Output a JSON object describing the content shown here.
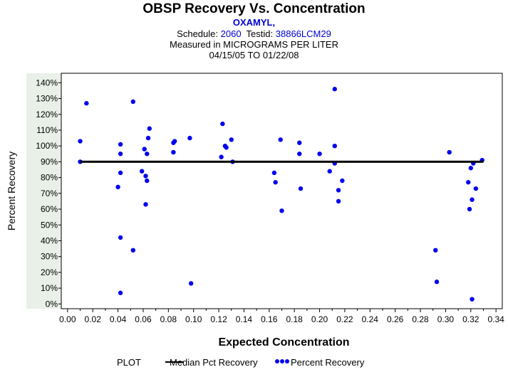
{
  "header": {
    "title": "OBSP Recovery Vs. Concentration",
    "analyte": "OXAMYL,",
    "schedule_label": "Schedule:",
    "schedule_value": "2060",
    "testid_label": "Testid:",
    "testid_value": "38866LCM29",
    "measured": "Measured in  MICROGRAMS PER LITER",
    "date_range": "04/15/05 TO 01/22/08"
  },
  "colors": {
    "points": "#0000ee",
    "median_line": "#000000",
    "tick_band": "#e8f0e8"
  },
  "chart_data": {
    "type": "scatter",
    "xlabel": "Expected Concentration",
    "ylabel": "Percent Recovery",
    "xlim": [
      -0.005,
      0.345
    ],
    "ylim": [
      -3,
      146
    ],
    "x_ticks": [
      0.0,
      0.02,
      0.04,
      0.06,
      0.08,
      0.1,
      0.12,
      0.14,
      0.16,
      0.18,
      0.2,
      0.22,
      0.24,
      0.26,
      0.28,
      0.3,
      0.32,
      0.34
    ],
    "x_tick_labels": [
      "0.00",
      "0.02",
      "0.04",
      "0.06",
      "0.08",
      "0.10",
      "0.12",
      "0.14",
      "0.16",
      "0.18",
      "0.20",
      "0.22",
      "0.24",
      "0.26",
      "0.28",
      "0.30",
      "0.32",
      "0.34"
    ],
    "y_ticks": [
      0,
      10,
      20,
      30,
      40,
      50,
      60,
      70,
      80,
      90,
      100,
      110,
      120,
      130,
      140
    ],
    "y_tick_labels": [
      "0%",
      "10%",
      "20%",
      "30%",
      "40%",
      "50%",
      "60%",
      "70%",
      "80%",
      "90%",
      "100%",
      "110%",
      "120%",
      "130%",
      "140%"
    ],
    "legend": {
      "title": "PLOT",
      "median_label": "Median Pct Recovery",
      "points_label": "Percent Recovery"
    },
    "series": [
      {
        "name": "Median Pct Recovery",
        "kind": "line",
        "x": [
          0.01,
          0.33
        ],
        "y": [
          90,
          90
        ]
      },
      {
        "name": "Percent Recovery",
        "kind": "points",
        "points": [
          [
            0.01,
            103
          ],
          [
            0.01,
            90
          ],
          [
            0.015,
            127
          ],
          [
            0.04,
            74
          ],
          [
            0.042,
            101
          ],
          [
            0.042,
            95
          ],
          [
            0.042,
            83
          ],
          [
            0.042,
            42
          ],
          [
            0.042,
            7
          ],
          [
            0.052,
            128
          ],
          [
            0.052,
            34
          ],
          [
            0.059,
            84
          ],
          [
            0.061,
            98
          ],
          [
            0.062,
            81
          ],
          [
            0.063,
            78
          ],
          [
            0.063,
            95
          ],
          [
            0.062,
            63
          ],
          [
            0.064,
            105
          ],
          [
            0.065,
            111
          ],
          [
            0.084,
            102
          ],
          [
            0.085,
            103
          ],
          [
            0.084,
            96
          ],
          [
            0.097,
            105
          ],
          [
            0.098,
            13
          ],
          [
            0.122,
            93
          ],
          [
            0.123,
            114
          ],
          [
            0.125,
            100
          ],
          [
            0.126,
            99
          ],
          [
            0.13,
            104
          ],
          [
            0.131,
            90
          ],
          [
            0.164,
            83
          ],
          [
            0.165,
            77
          ],
          [
            0.169,
            104
          ],
          [
            0.17,
            59
          ],
          [
            0.184,
            102
          ],
          [
            0.184,
            95
          ],
          [
            0.185,
            73
          ],
          [
            0.2,
            95
          ],
          [
            0.208,
            84
          ],
          [
            0.212,
            136
          ],
          [
            0.212,
            100
          ],
          [
            0.212,
            89
          ],
          [
            0.215,
            65
          ],
          [
            0.215,
            72
          ],
          [
            0.218,
            78
          ],
          [
            0.292,
            34
          ],
          [
            0.293,
            14
          ],
          [
            0.303,
            96
          ],
          [
            0.318,
            77
          ],
          [
            0.319,
            60
          ],
          [
            0.32,
            86
          ],
          [
            0.321,
            66
          ],
          [
            0.321,
            3
          ],
          [
            0.322,
            89
          ],
          [
            0.324,
            73
          ],
          [
            0.329,
            91
          ]
        ]
      }
    ]
  }
}
